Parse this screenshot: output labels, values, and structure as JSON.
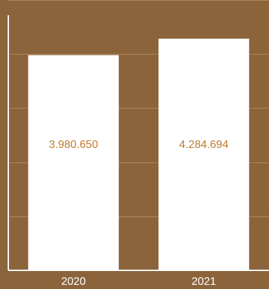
{
  "chart_data": {
    "type": "bar",
    "categories": [
      "2020",
      "2021"
    ],
    "values": [
      3980650,
      4284694
    ],
    "value_labels": [
      "3.980.650",
      "4.284.694"
    ],
    "title": "",
    "xlabel": "",
    "ylabel": "",
    "ylim": [
      0,
      5000000
    ],
    "grid": true,
    "legend": "none",
    "colors": {
      "background": "#8b643b",
      "bar": "#ffffff",
      "data_label": "#c07a2c",
      "tick_label": "#ffffff",
      "grid": "#b08860",
      "axis": "#ffffff"
    }
  }
}
